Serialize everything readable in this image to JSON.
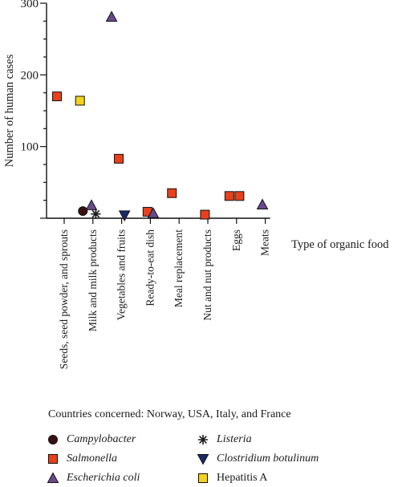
{
  "chart_data": {
    "type": "scatter",
    "ylabel": "Number of human cases",
    "xlabel": "Type of organic food",
    "ylim": [
      0,
      300
    ],
    "yticks": [
      0,
      100,
      200,
      300
    ],
    "y_tick_labels": [
      "",
      "100",
      "200",
      "300"
    ],
    "categories": [
      "Seeds, seed powder, and sprouts",
      "Milk and milk products",
      "Vegetables and fruits",
      "Ready-to-eat dish",
      "Meal replacement",
      "Nut and nut products",
      "Eggs",
      "Meats"
    ],
    "series": [
      {
        "name": "Campylobacter",
        "marker": "circle",
        "color": "#3a1010",
        "points": [
          {
            "category": "Milk and milk products",
            "offset": -0.35,
            "y": 10
          }
        ]
      },
      {
        "name": "Salmonella",
        "marker": "square",
        "color": "#e8401c",
        "points": [
          {
            "category": "Seeds, seed powder, and sprouts",
            "offset": -0.25,
            "y": 170
          },
          {
            "category": "Vegetables and fruits",
            "offset": -0.1,
            "y": 83
          },
          {
            "category": "Ready-to-eat dish",
            "offset": -0.1,
            "y": 9
          },
          {
            "category": "Meal replacement",
            "offset": -0.25,
            "y": 35
          },
          {
            "category": "Nut and nut products",
            "offset": -0.1,
            "y": 5
          },
          {
            "category": "Eggs",
            "offset": -0.25,
            "y": 31
          },
          {
            "category": "Eggs",
            "offset": 0.1,
            "y": 31
          }
        ]
      },
      {
        "name": "Escherichia coli",
        "marker": "triangle",
        "color": "#6a4a8c",
        "points": [
          {
            "category": "Milk and milk products",
            "offset": -0.05,
            "y": 18
          },
          {
            "category": "Vegetables and fruits",
            "offset": -0.35,
            "y": 281
          },
          {
            "category": "Ready-to-eat dish",
            "offset": 0.1,
            "y": 7
          },
          {
            "category": "Meats",
            "offset": -0.1,
            "y": 19
          }
        ]
      },
      {
        "name": "Listeria",
        "marker": "asterisk",
        "color": "#1a1a1a",
        "points": [
          {
            "category": "Milk and milk products",
            "offset": 0.1,
            "y": 6
          }
        ]
      },
      {
        "name": "Clostridium botulinum",
        "marker": "triangle-down",
        "color": "#1a2a6a",
        "points": [
          {
            "category": "Vegetables and fruits",
            "offset": 0.1,
            "y": 4
          }
        ]
      },
      {
        "name": "Hepatitis A",
        "marker": "square",
        "color": "#f2d21c",
        "points": [
          {
            "category": "Seeds, seed powder, and sprouts",
            "offset": 0.55,
            "y": 164
          }
        ]
      }
    ],
    "legend_placement": "bottom"
  },
  "note": "Countries concerned: Norway, USA, Italy, and France",
  "legend": [
    {
      "label": "Campylobacter",
      "italic": true,
      "marker": "circle",
      "color": "#3a1010"
    },
    {
      "label": "Salmonella",
      "italic": true,
      "marker": "square",
      "color": "#e8401c"
    },
    {
      "label": "Escherichia coli",
      "italic": true,
      "marker": "triangle",
      "color": "#6a4a8c"
    },
    {
      "label": "Listeria",
      "italic": true,
      "marker": "asterisk",
      "color": "#1a1a1a"
    },
    {
      "label": "Clostridium botulinum",
      "italic": true,
      "marker": "triangle-down",
      "color": "#1a2a6a"
    },
    {
      "label": "Hepatitis A",
      "italic": false,
      "marker": "square",
      "color": "#f2d21c"
    }
  ]
}
